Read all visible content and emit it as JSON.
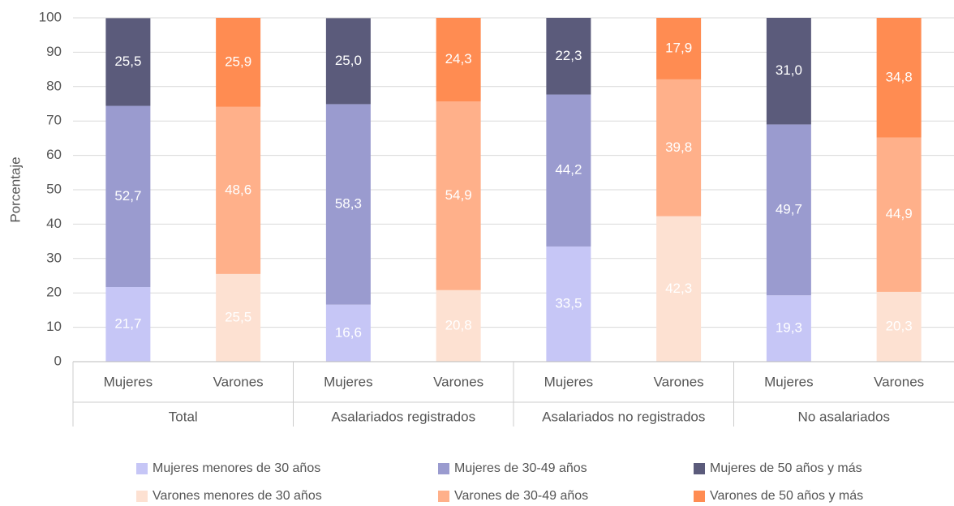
{
  "chart_data": {
    "type": "stacked_bar",
    "y_label": "Porcentaje",
    "categories": [
      "Mujeres",
      "Varones",
      "Mujeres",
      "Varones",
      "Mujeres",
      "Varones",
      "Mujeres",
      "Varones"
    ],
    "groups": [
      "Total",
      "Asalariados registrados",
      "Asalariados no registrados",
      "No asalariados"
    ],
    "series": [
      {
        "name": "Mujeres menores de 30 años",
        "color": "#c6c6f6",
        "values": [
          21.7,
          null,
          16.6,
          null,
          33.5,
          null,
          19.3,
          null
        ],
        "value_labels": [
          "21,7",
          null,
          "16,6",
          null,
          "33,5",
          null,
          "19,3",
          null
        ]
      },
      {
        "name": "Mujeres de 30-49 años",
        "color": "#9a9bcf",
        "values": [
          52.7,
          null,
          58.3,
          null,
          44.2,
          null,
          49.7,
          null
        ],
        "value_labels": [
          "52,7",
          null,
          "58,3",
          null,
          "44,2",
          null,
          "49,7",
          null
        ]
      },
      {
        "name": "Mujeres de 50 años y más",
        "color": "#5b5b7b",
        "values": [
          25.5,
          null,
          25.0,
          null,
          22.3,
          null,
          31.0,
          null
        ],
        "value_labels": [
          "25,5",
          null,
          "25,0",
          null,
          "22,3",
          null,
          "31,0",
          null
        ]
      },
      {
        "name": "Varones menores de 30 años",
        "color": "#fde1d2",
        "values": [
          null,
          25.5,
          null,
          20.8,
          null,
          42.3,
          null,
          20.3
        ],
        "value_labels": [
          null,
          "25,5",
          null,
          "20,8",
          null,
          "42,3",
          null,
          "20,3"
        ]
      },
      {
        "name": "Varones de 30-49 años",
        "color": "#ffb08a",
        "values": [
          null,
          48.6,
          null,
          54.9,
          null,
          39.8,
          null,
          44.9
        ],
        "value_labels": [
          null,
          "48,6",
          null,
          "54,9",
          null,
          "39,8",
          null,
          "44,9"
        ]
      },
      {
        "name": "Varones de 50 años y más",
        "color": "#ff8c52",
        "values": [
          null,
          25.9,
          null,
          24.3,
          null,
          17.9,
          null,
          34.8
        ],
        "value_labels": [
          null,
          "25,9",
          null,
          "24,3",
          null,
          "17,9",
          null,
          "34,8"
        ]
      }
    ],
    "ylim": [
      0,
      100
    ],
    "yticks": [
      0,
      10,
      20,
      30,
      40,
      50,
      60,
      70,
      80,
      90,
      100
    ],
    "grid": true
  }
}
